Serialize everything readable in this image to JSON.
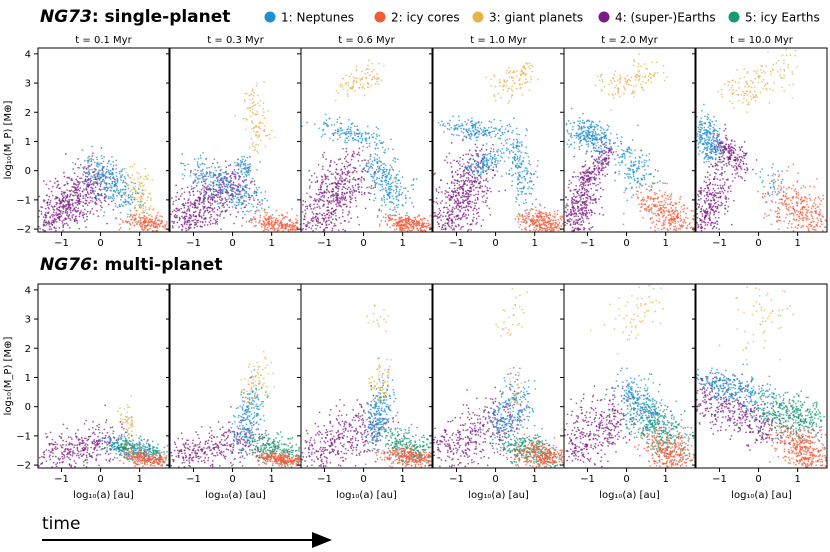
{
  "rows": [
    {
      "model": "NG73",
      "title_suffix": ": single-planet",
      "kind": "single"
    },
    {
      "model": "NG76",
      "title_suffix": ": multi-planet",
      "kind": "multi"
    }
  ],
  "time_arrow_label": "time",
  "legend": [
    {
      "label": "1: Neptunes",
      "color": "#1f8fd0"
    },
    {
      "label": "2: icy cores",
      "color": "#f4593a"
    },
    {
      "label": "3: giant planets",
      "color": "#e6b24a"
    },
    {
      "label": "4: (super-)Earths",
      "color": "#7b1a82"
    },
    {
      "label": "5: icy Earths",
      "color": "#169a74"
    }
  ],
  "chart_data": {
    "type": "scatter",
    "panel_titles": [
      "t = 0.1 Myr",
      "t = 0.3 Myr",
      "t = 0.6 Myr",
      "t = 1.0 Myr",
      "t = 2.0 Myr",
      "t = 10.0 Myr"
    ],
    "xlabel": "log₁₀(a) [au]",
    "ylabel": "log₁₀(M_P) [M⊕]",
    "xlim": [
      -1.6,
      1.75
    ],
    "ylim": [
      -2.1,
      4.2
    ],
    "xticks": [
      -1,
      0,
      1
    ],
    "yticks": [
      -2,
      -1,
      0,
      1,
      2,
      3,
      4
    ],
    "note": "Each population cloud is summarized by approximate point-cluster segments: [x1, y1, x2, y2, spread_x, spread_y, count] in data units.",
    "single": [
      {
        "1": [
          [
            -0.2,
            0.2,
            0.7,
            -1.1,
            0.25,
            0.3,
            300
          ]
        ],
        "2": [
          [
            0.9,
            -1.7,
            1.6,
            -2.0,
            0.25,
            0.15,
            200
          ]
        ],
        "3": [
          [
            0.8,
            -0.2,
            1.2,
            -1.5,
            0.15,
            0.3,
            120
          ]
        ],
        "4": [
          [
            -1.5,
            -1.8,
            -0.1,
            -0.4,
            0.25,
            0.45,
            600
          ]
        ]
      },
      {
        "1": [
          [
            -1.0,
            0.1,
            0.6,
            -1.2,
            0.3,
            0.3,
            280
          ],
          [
            0.2,
            0.3,
            0.4,
            0.0,
            0.1,
            0.15,
            60
          ]
        ],
        "2": [
          [
            0.8,
            -1.7,
            1.6,
            -2.0,
            0.25,
            0.15,
            250
          ]
        ],
        "3": [
          [
            0.5,
            2.5,
            0.7,
            1.0,
            0.15,
            0.4,
            100
          ]
        ],
        "4": [
          [
            -1.4,
            -1.8,
            0.2,
            -0.3,
            0.3,
            0.45,
            550
          ]
        ]
      },
      {
        "1": [
          [
            -1.0,
            1.5,
            0.3,
            1.1,
            0.2,
            0.18,
            140
          ],
          [
            0.3,
            0.4,
            0.9,
            -1.2,
            0.2,
            0.4,
            260
          ]
        ],
        "2": [
          [
            0.8,
            -1.7,
            1.6,
            -2.0,
            0.25,
            0.15,
            280
          ]
        ],
        "3": [
          [
            -0.4,
            2.8,
            0.4,
            3.4,
            0.2,
            0.2,
            90
          ]
        ],
        "4": [
          [
            -1.4,
            -1.9,
            -0.2,
            0.0,
            0.3,
            0.55,
            550
          ]
        ]
      },
      {
        "1": [
          [
            -1.2,
            1.5,
            0.0,
            1.3,
            0.2,
            0.15,
            160
          ],
          [
            0.4,
            1.2,
            0.8,
            -0.8,
            0.15,
            0.4,
            200
          ],
          [
            -0.6,
            0.0,
            0.1,
            0.5,
            0.15,
            0.2,
            120
          ]
        ],
        "2": [
          [
            0.9,
            -1.6,
            1.6,
            -2.0,
            0.25,
            0.2,
            300
          ]
        ],
        "3": [
          [
            0.1,
            2.8,
            0.8,
            3.4,
            0.2,
            0.25,
            100
          ]
        ],
        "4": [
          [
            -1.3,
            -1.9,
            -0.4,
            0.2,
            0.3,
            0.55,
            550
          ]
        ]
      },
      {
        "1": [
          [
            -1.3,
            1.4,
            -0.6,
            1.0,
            0.2,
            0.25,
            260
          ],
          [
            0.0,
            0.6,
            0.3,
            -0.4,
            0.2,
            0.3,
            140
          ]
        ],
        "2": [
          [
            0.6,
            -1.0,
            1.5,
            -2.0,
            0.3,
            0.3,
            320
          ]
        ],
        "3": [
          [
            -0.5,
            2.8,
            0.7,
            3.4,
            0.25,
            0.25,
            120
          ]
        ],
        "4": [
          [
            -1.4,
            -1.9,
            -1.0,
            -0.6,
            0.2,
            0.45,
            330
          ],
          [
            -1.1,
            -0.3,
            -0.4,
            0.7,
            0.12,
            0.2,
            160
          ]
        ],
        "5": [
          [
            0.6,
            -0.1,
            0.8,
            -0.4,
            0.1,
            0.1,
            10
          ]
        ]
      },
      {
        "1": [
          [
            -1.5,
            1.5,
            -1.1,
            0.7,
            0.15,
            0.35,
            240
          ],
          [
            0.2,
            -0.1,
            0.5,
            -0.9,
            0.15,
            0.3,
            40
          ]
        ],
        "2": [
          [
            0.6,
            -0.7,
            1.6,
            -2.0,
            0.3,
            0.4,
            320
          ]
        ],
        "3": [
          [
            -0.6,
            2.6,
            0.7,
            3.5,
            0.25,
            0.35,
            140
          ]
        ],
        "4": [
          [
            -1.5,
            -1.9,
            -1.0,
            -0.4,
            0.2,
            0.5,
            300
          ],
          [
            -1.0,
            0.8,
            -0.4,
            0.2,
            0.15,
            0.3,
            200
          ]
        ]
      }
    ],
    "multi": [
      {
        "1": [
          [
            0.4,
            -1.2,
            1.2,
            -1.6,
            0.3,
            0.15,
            160
          ]
        ],
        "2": [
          [
            0.9,
            -1.7,
            1.6,
            -1.9,
            0.25,
            0.1,
            220
          ]
        ],
        "3": [
          [
            0.6,
            -0.2,
            0.8,
            -1.1,
            0.1,
            0.3,
            60
          ]
        ],
        "4": [
          [
            -1.5,
            -1.8,
            0.3,
            -1.1,
            0.35,
            0.35,
            350
          ]
        ],
        "5": [
          [
            0.5,
            -1.3,
            1.5,
            -1.7,
            0.3,
            0.15,
            200
          ]
        ]
      },
      {
        "1": [
          [
            0.2,
            -1.1,
            0.6,
            0.4,
            0.15,
            0.4,
            200
          ]
        ],
        "2": [
          [
            0.9,
            -1.7,
            1.6,
            -1.9,
            0.25,
            0.1,
            250
          ]
        ],
        "3": [
          [
            0.4,
            0.3,
            0.8,
            1.3,
            0.15,
            0.3,
            70
          ]
        ],
        "4": [
          [
            -1.5,
            -1.8,
            0.4,
            -1.1,
            0.35,
            0.35,
            350
          ]
        ],
        "5": [
          [
            0.6,
            -1.2,
            1.6,
            -1.8,
            0.3,
            0.2,
            250
          ]
        ]
      },
      {
        "1": [
          [
            0.2,
            -1.0,
            0.6,
            0.5,
            0.15,
            0.45,
            220
          ]
        ],
        "2": [
          [
            0.8,
            -1.6,
            1.6,
            -1.9,
            0.3,
            0.15,
            280
          ]
        ],
        "3": [
          [
            0.3,
            0.4,
            0.6,
            1.3,
            0.15,
            0.3,
            60
          ],
          [
            0.2,
            2.8,
            0.6,
            3.2,
            0.1,
            0.2,
            15
          ]
        ],
        "4": [
          [
            -1.5,
            -1.8,
            0.3,
            -0.6,
            0.35,
            0.45,
            380
          ]
        ],
        "5": [
          [
            0.7,
            -1.0,
            1.6,
            -1.7,
            0.3,
            0.25,
            270
          ]
        ]
      },
      {
        "1": [
          [
            0.1,
            -0.8,
            0.6,
            0.5,
            0.2,
            0.45,
            230
          ]
        ],
        "2": [
          [
            0.8,
            -1.5,
            1.6,
            -1.9,
            0.3,
            0.2,
            300
          ]
        ],
        "3": [
          [
            0.2,
            2.5,
            0.7,
            3.6,
            0.15,
            0.35,
            30
          ],
          [
            0.4,
            0.2,
            0.6,
            1.0,
            0.1,
            0.3,
            30
          ]
        ],
        "4": [
          [
            -1.5,
            -1.7,
            0.2,
            -0.3,
            0.35,
            0.45,
            380
          ]
        ],
        "5": [
          [
            0.5,
            -1.2,
            1.3,
            -1.7,
            0.3,
            0.25,
            280
          ]
        ]
      },
      {
        "1": [
          [
            0.0,
            0.7,
            0.8,
            -0.5,
            0.25,
            0.3,
            260
          ]
        ],
        "2": [
          [
            0.8,
            -1.2,
            1.5,
            -2.0,
            0.3,
            0.3,
            300
          ]
        ],
        "3": [
          [
            -0.2,
            2.4,
            0.6,
            3.8,
            0.25,
            0.4,
            60
          ]
        ],
        "4": [
          [
            -1.5,
            -1.6,
            -0.1,
            0.0,
            0.35,
            0.45,
            380
          ]
        ],
        "5": [
          [
            0.3,
            -0.2,
            1.3,
            -1.4,
            0.3,
            0.35,
            300
          ]
        ]
      },
      {
        "1": [
          [
            -1.4,
            1.0,
            0.2,
            0.2,
            0.3,
            0.25,
            300
          ]
        ],
        "2": [
          [
            0.8,
            -1.0,
            1.5,
            -2.0,
            0.3,
            0.3,
            380
          ]
        ],
        "3": [
          [
            -0.3,
            2.3,
            0.6,
            3.9,
            0.3,
            0.45,
            60
          ]
        ],
        "4": [
          [
            -1.6,
            0.6,
            0.4,
            -1.0,
            0.4,
            0.4,
            420
          ]
        ],
        "5": [
          [
            0.3,
            0.0,
            1.4,
            -0.6,
            0.35,
            0.35,
            340
          ]
        ]
      }
    ]
  }
}
